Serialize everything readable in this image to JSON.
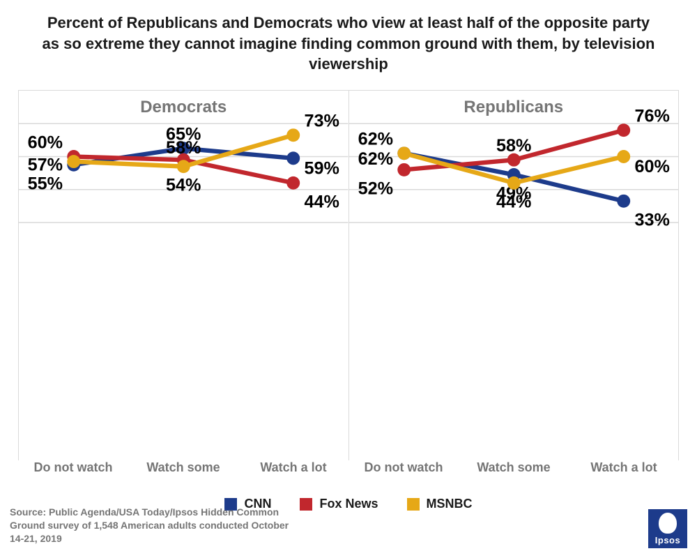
{
  "title": "Percent of Republicans and Democrats who view at least half of the opposite party as so extreme they cannot imagine finding common ground with them, by television viewership",
  "chart": {
    "type": "line",
    "categories": [
      "Do not watch",
      "Watch some",
      "Watch a lot"
    ],
    "ylim": [
      0,
      100
    ],
    "gridline_values": [
      20,
      40,
      60,
      80
    ],
    "gridline_color": "#d9d9d9",
    "background_color": "#ffffff",
    "line_width": 4,
    "marker_radius": 6,
    "label_fontsize": 16,
    "label_fontweight": "700",
    "label_color": "#000000",
    "panel_title_fontsize": 24,
    "panel_title_color": "#757575",
    "xcat_fontsize": 18,
    "xcat_color": "#757575",
    "panels": [
      {
        "title": "Democrats",
        "series": [
          {
            "key": "cnn",
            "values": [
              55,
              65,
              59
            ],
            "label_dy": [
              18,
              -12,
              10
            ]
          },
          {
            "key": "fox",
            "values": [
              60,
              58,
              44
            ],
            "label_dy": [
              -12,
              0,
              18
            ]
          },
          {
            "key": "msnbc",
            "values": [
              57,
              54,
              73
            ],
            "label_dy": [
              4,
              18,
              -12
            ]
          }
        ]
      },
      {
        "title": "Republicans",
        "series": [
          {
            "key": "cnn",
            "values": [
              62,
              49,
              33
            ],
            "label_dy": [
              -12,
              18,
              18
            ]
          },
          {
            "key": "fox",
            "values": [
              52,
              58,
              76
            ],
            "label_dy": [
              18,
              -12,
              -12
            ]
          },
          {
            "key": "msnbc",
            "values": [
              62,
              44,
              60
            ],
            "label_dy": [
              6,
              18,
              10
            ]
          }
        ]
      }
    ],
    "series_meta": {
      "cnn": {
        "label": "CNN",
        "color": "#1d3b8b"
      },
      "fox": {
        "label": "Fox News",
        "color": "#c1272d"
      },
      "msnbc": {
        "label": "MSNBC",
        "color": "#e6a817"
      }
    }
  },
  "legend": {
    "items": [
      "cnn",
      "fox",
      "msnbc"
    ],
    "fontsize": 18,
    "swatch_size": 18
  },
  "source": "Source: Public Agenda/USA Today/Ipsos Hidden Common Ground survey of 1,548 American adults conducted October 14-21, 2019",
  "logo_text": "Ipsos"
}
